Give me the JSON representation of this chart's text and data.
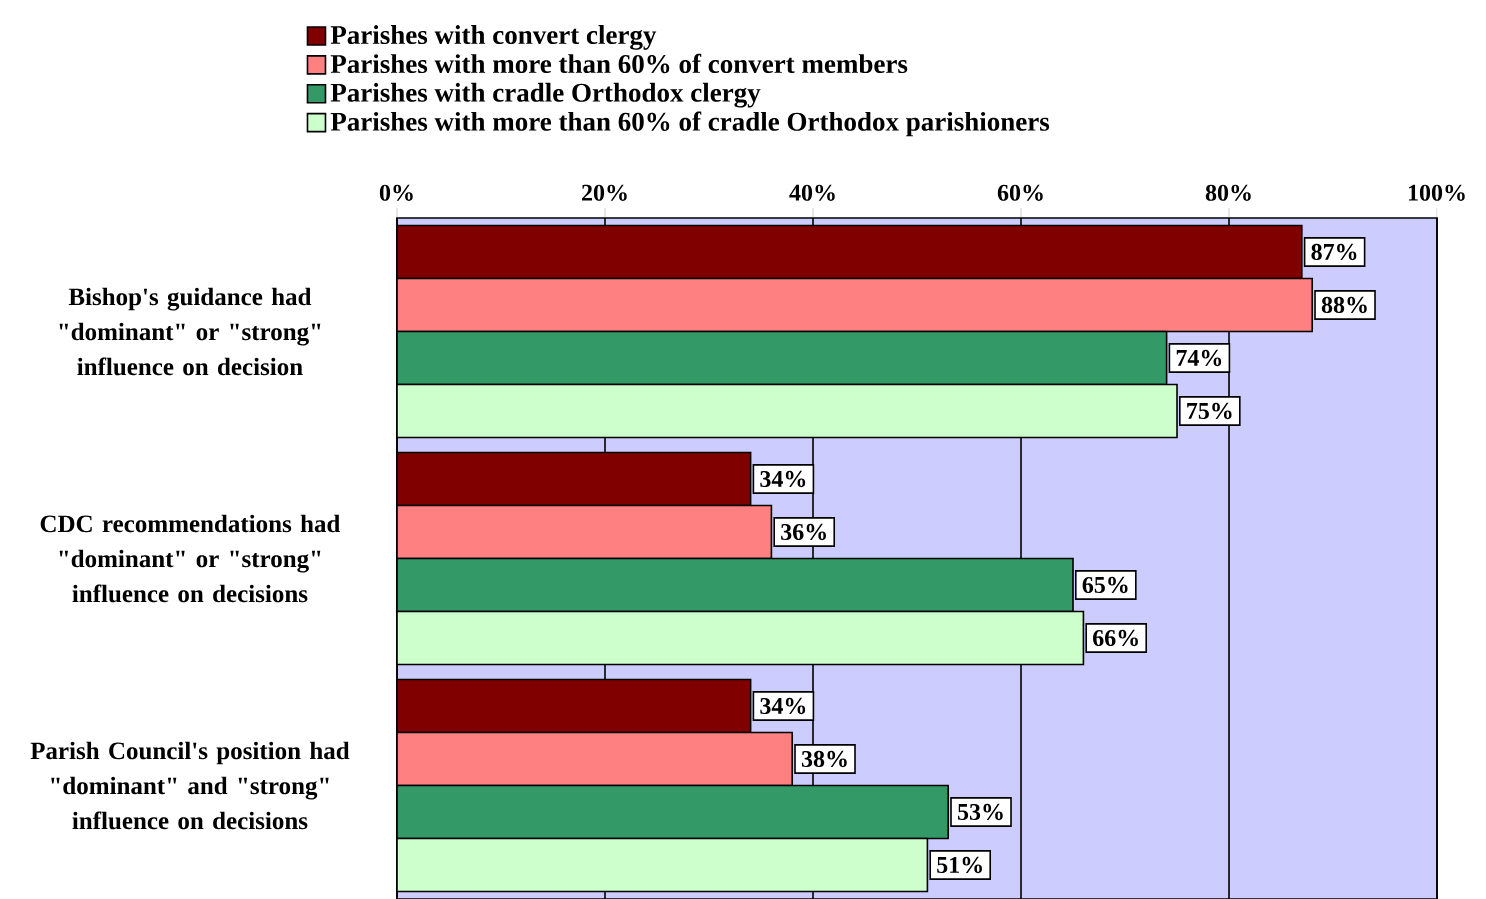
{
  "chart_data": {
    "type": "bar",
    "orientation": "horizontal",
    "categories": [
      "Bishop's guidance had \"dominant\" or \"strong\" influence on decision",
      "CDC recommendations had \"dominant\" or \"strong\" influence on decisions",
      "Parish Council's position had \"dominant\" and \"strong\" influence on decisions"
    ],
    "series": [
      {
        "name": "Parishes with convert clergy",
        "color": "#800000",
        "values": [
          87,
          34,
          34
        ],
        "value_labels": [
          "87%",
          "34%",
          "34%"
        ]
      },
      {
        "name": "Parishes with more than 60% of convert members",
        "color": "#ff8080",
        "values": [
          88,
          36,
          38
        ],
        "value_labels": [
          "88%",
          "36%",
          "38%"
        ]
      },
      {
        "name": "Parishes with cradle Orthodox clergy",
        "color": "#339966",
        "values": [
          74,
          65,
          53
        ],
        "value_labels": [
          "74%",
          "65%",
          "53%"
        ]
      },
      {
        "name": "Parishes with more than 60% of cradle Orthodox parishioners",
        "color": "#ccffcc",
        "values": [
          75,
          66,
          51
        ],
        "value_labels": [
          "75%",
          "66%",
          "51%"
        ]
      }
    ],
    "xlim": [
      0,
      100
    ],
    "xticks": [
      {
        "value": 0,
        "label": "0%"
      },
      {
        "value": 20,
        "label": "20%"
      },
      {
        "value": 40,
        "label": "40%"
      },
      {
        "value": 60,
        "label": "60%"
      },
      {
        "value": 80,
        "label": "80%"
      },
      {
        "value": 100,
        "label": "100%"
      }
    ],
    "grid": "x",
    "legend": "top"
  }
}
